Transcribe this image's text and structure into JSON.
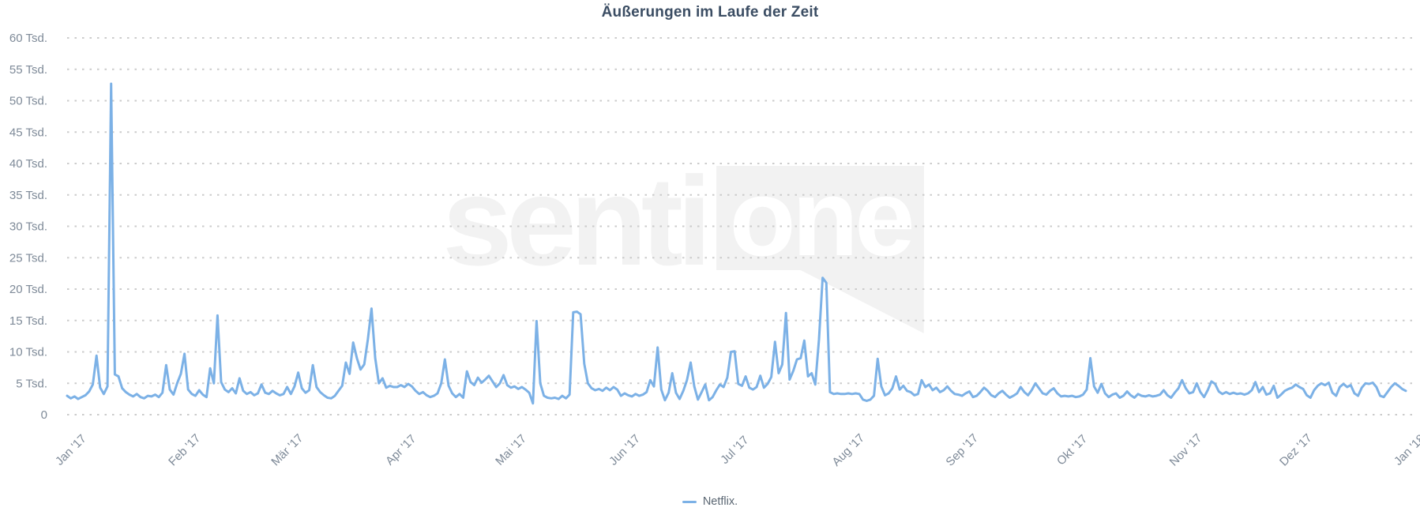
{
  "title": "Äußerungen im Laufe der Zeit",
  "watermark": {
    "prefix": "senti",
    "boxed": "one"
  },
  "legend": {
    "label": "Netflix."
  },
  "colors": {
    "line": "#7cb1e6",
    "grid": "#cbcbcb",
    "axis_text": "#7e8a98",
    "title_text": "#3b4d63",
    "legend_text": "#5a6672",
    "watermark": "#f2f2f2"
  },
  "chart_data": {
    "type": "line",
    "title": "Äußerungen im Laufe der Zeit",
    "xlabel": "",
    "ylabel": "",
    "unit": "Tsd.",
    "ylim": [
      0,
      60
    ],
    "ytick_step": 5,
    "grid": "dotted-horizontal",
    "legend_position": "bottom-center",
    "y_tick_labels": [
      "0",
      "5 Tsd.",
      "10 Tsd.",
      "15 Tsd.",
      "20 Tsd.",
      "25 Tsd.",
      "30 Tsd.",
      "35 Tsd.",
      "40 Tsd.",
      "45 Tsd.",
      "50 Tsd.",
      "55 Tsd.",
      "60 Tsd."
    ],
    "x_ticks": [
      {
        "label": "Jan '17",
        "day": 0
      },
      {
        "label": "Feb '17",
        "day": 31
      },
      {
        "label": "Mär '17",
        "day": 59
      },
      {
        "label": "Apr '17",
        "day": 90
      },
      {
        "label": "Mai '17",
        "day": 120
      },
      {
        "label": "Jun '17",
        "day": 151
      },
      {
        "label": "Jul '17",
        "day": 181
      },
      {
        "label": "Aug '17",
        "day": 212
      },
      {
        "label": "Sep '17",
        "day": 243
      },
      {
        "label": "Okt '17",
        "day": 273
      },
      {
        "label": "Nov '17",
        "day": 304
      },
      {
        "label": "Dez '17",
        "day": 334
      },
      {
        "label": "Jan '18",
        "day": 365
      }
    ],
    "series": [
      {
        "name": "Netflix.",
        "color": "#7cb1e6",
        "values_tsd": [
          3.0,
          2.6,
          2.9,
          2.5,
          2.8,
          3.1,
          3.7,
          4.8,
          9.4,
          4.3,
          3.3,
          4.5,
          52.7,
          6.4,
          6.1,
          4.2,
          3.6,
          3.2,
          2.9,
          3.3,
          2.8,
          2.6,
          3.0,
          2.9,
          3.2,
          2.8,
          3.5,
          7.9,
          4.0,
          3.2,
          5.0,
          6.5,
          9.7,
          4.0,
          3.3,
          3.0,
          3.9,
          3.2,
          2.8,
          7.4,
          5.0,
          15.8,
          5.2,
          4.0,
          3.6,
          4.2,
          3.4,
          5.8,
          3.8,
          3.3,
          3.6,
          3.1,
          3.4,
          4.8,
          3.5,
          3.3,
          3.8,
          3.4,
          3.1,
          3.3,
          4.4,
          3.3,
          4.5,
          6.7,
          4.2,
          3.5,
          3.9,
          7.9,
          4.4,
          3.6,
          3.1,
          2.7,
          2.6,
          3.0,
          3.8,
          4.6,
          8.3,
          6.5,
          11.5,
          9.0,
          7.2,
          8.0,
          12.0,
          16.9,
          9.0,
          5.0,
          5.8,
          4.3,
          4.6,
          4.4,
          4.4,
          4.7,
          4.4,
          4.9,
          4.5,
          3.8,
          3.3,
          3.6,
          3.1,
          2.8,
          3.0,
          3.4,
          5.0,
          8.8,
          4.6,
          3.4,
          2.8,
          3.3,
          2.7,
          6.9,
          5.2,
          4.7,
          5.9,
          5.1,
          5.6,
          6.2,
          5.3,
          4.4,
          5.0,
          6.3,
          4.7,
          4.3,
          4.5,
          4.1,
          4.4,
          4.0,
          3.5,
          1.8,
          14.9,
          5.0,
          3.0,
          2.7,
          2.6,
          2.7,
          2.5,
          3.0,
          2.6,
          3.2,
          16.3,
          16.4,
          16.0,
          8.1,
          5.0,
          4.2,
          3.9,
          4.1,
          3.8,
          4.3,
          3.9,
          4.4,
          4.0,
          3.0,
          3.4,
          3.1,
          2.9,
          3.3,
          3.0,
          3.2,
          3.6,
          5.5,
          4.5,
          10.7,
          4.0,
          2.3,
          3.5,
          6.6,
          3.5,
          2.5,
          3.8,
          5.5,
          8.3,
          4.5,
          2.4,
          3.6,
          4.8,
          2.3,
          2.8,
          3.9,
          4.8,
          4.4,
          5.9,
          10.0,
          10.1,
          4.9,
          4.6,
          6.1,
          4.3,
          4.0,
          4.4,
          6.2,
          4.3,
          4.9,
          6.0,
          11.6,
          6.6,
          8.0,
          16.2,
          5.6,
          7.0,
          8.8,
          9.0,
          11.8,
          6.1,
          6.6,
          4.8,
          12.0,
          21.8,
          21.0,
          3.6,
          3.3,
          3.4,
          3.3,
          3.3,
          3.4,
          3.3,
          3.4,
          3.3,
          2.4,
          2.2,
          2.4,
          3.0,
          8.9,
          4.5,
          3.1,
          3.4,
          4.2,
          6.1,
          4.0,
          4.6,
          3.8,
          3.6,
          3.1,
          3.3,
          5.5,
          4.4,
          4.8,
          3.9,
          4.3,
          3.6,
          3.9,
          4.5,
          3.8,
          3.3,
          3.2,
          3.0,
          3.4,
          3.7,
          2.8,
          3.0,
          3.6,
          4.3,
          3.8,
          3.1,
          2.8,
          3.4,
          3.8,
          3.2,
          2.7,
          3.0,
          3.4,
          4.4,
          3.6,
          3.1,
          3.9,
          5.0,
          4.2,
          3.4,
          3.2,
          3.8,
          4.2,
          3.4,
          2.9,
          3.0,
          2.9,
          3.0,
          2.8,
          2.9,
          3.2,
          4.0,
          9.0,
          4.5,
          3.5,
          4.9,
          3.4,
          2.8,
          3.2,
          3.4,
          2.7,
          3.0,
          3.7,
          3.1,
          2.7,
          3.3,
          3.0,
          2.9,
          3.1,
          2.9,
          3.0,
          3.2,
          3.9,
          3.1,
          2.7,
          3.5,
          4.2,
          5.5,
          4.2,
          3.4,
          3.6,
          5.0,
          3.6,
          2.8,
          3.9,
          5.3,
          4.9,
          3.7,
          3.3,
          3.6,
          3.3,
          3.5,
          3.3,
          3.4,
          3.2,
          3.4,
          3.9,
          5.2,
          3.6,
          4.4,
          3.2,
          3.4,
          4.6,
          2.7,
          3.2,
          3.8,
          4.1,
          4.3,
          4.8,
          4.4,
          4.1,
          3.1,
          2.7,
          3.9,
          4.6,
          5.0,
          4.7,
          5.1,
          3.5,
          3.0,
          4.4,
          4.9,
          4.4,
          4.7,
          3.4,
          3.0,
          4.3,
          5.0,
          4.9,
          5.1,
          4.4,
          3.0,
          2.8,
          3.6,
          4.4,
          5.0,
          4.6,
          4.1,
          3.8
        ]
      }
    ]
  }
}
